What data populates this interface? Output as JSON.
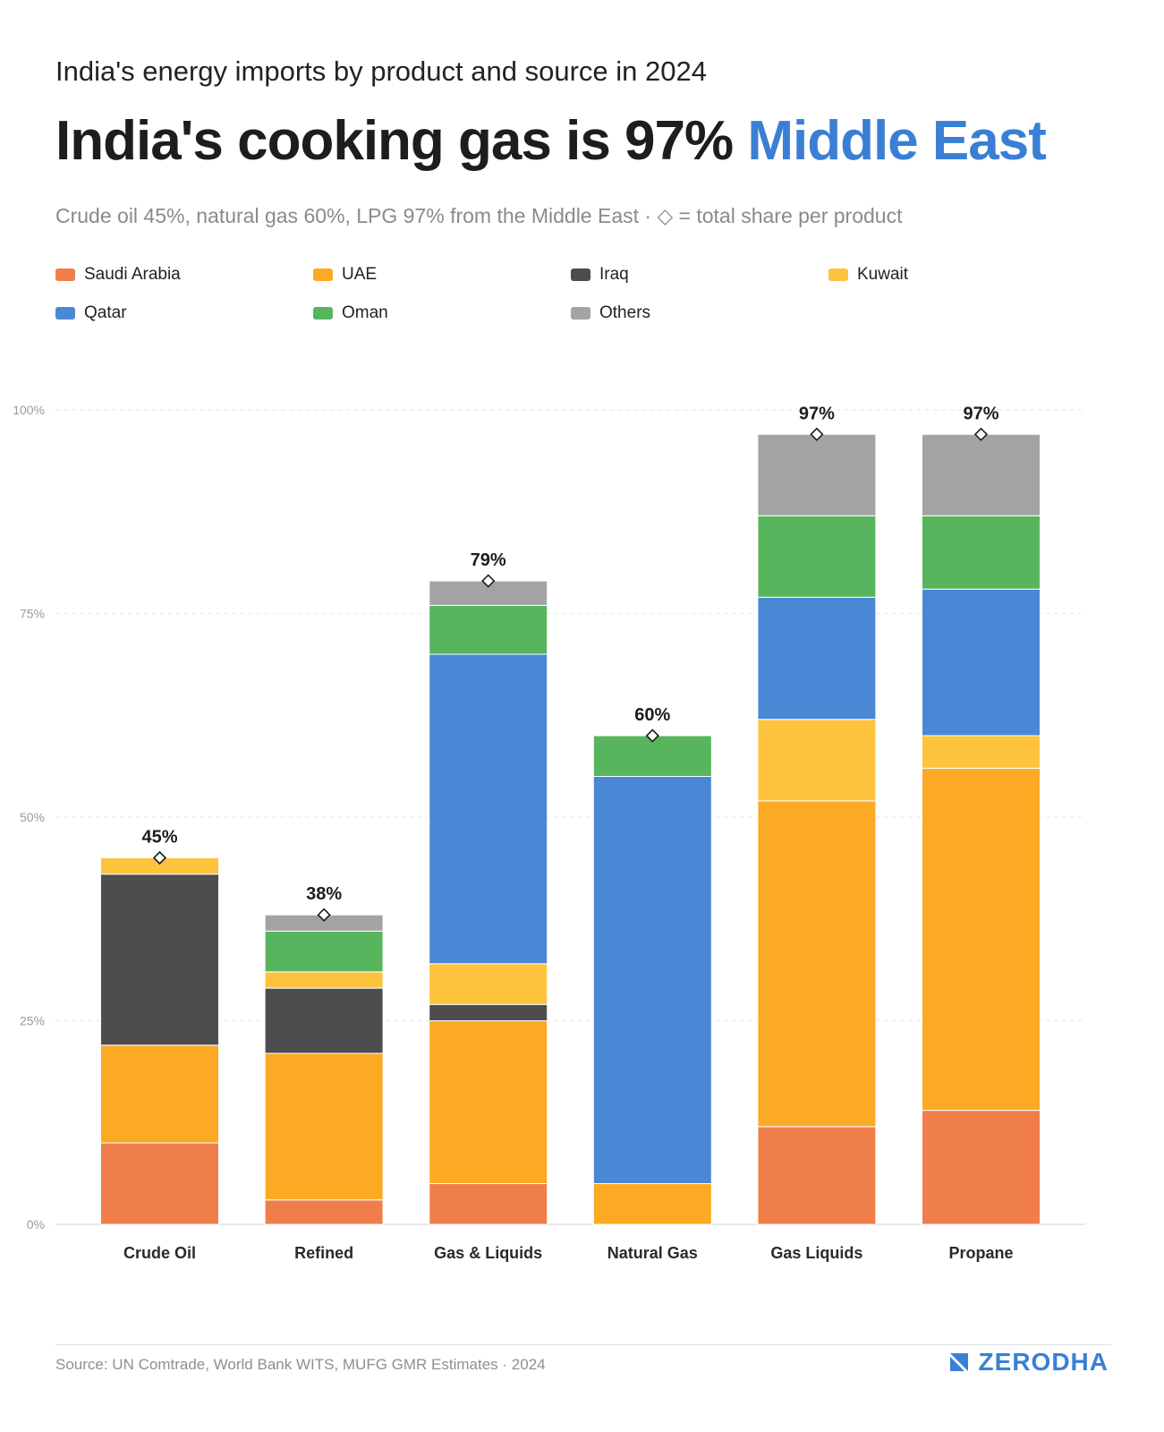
{
  "header": {
    "eyebrow": "India's energy imports by product and source in 2024",
    "headline_main": "India's cooking gas is 97% ",
    "headline_accent": "Middle East",
    "subtitle": "Crude oil 45%, natural gas 60%, LPG 97% from the Middle East · ◇ = total share per product"
  },
  "legend": [
    {
      "label": "Saudi Arabia",
      "color": "#f07e4a"
    },
    {
      "label": "UAE",
      "color": "#fca923"
    },
    {
      "label": "Iraq",
      "color": "#4d4d4d"
    },
    {
      "label": "Kuwait",
      "color": "#fec33d"
    },
    {
      "label": "Qatar",
      "color": "#4a88d6"
    },
    {
      "label": "Oman",
      "color": "#57b55d"
    },
    {
      "label": "Others",
      "color": "#a3a3a3"
    }
  ],
  "chart_data": {
    "type": "bar",
    "stacked": true,
    "categories": [
      "Crude Oil",
      "Refined",
      "Gas & Liquids",
      "Natural Gas",
      "Gas Liquids",
      "Propane"
    ],
    "series": [
      {
        "name": "Saudi Arabia",
        "color": "#f07e4a",
        "values": [
          10,
          3,
          5,
          0,
          12,
          14
        ]
      },
      {
        "name": "UAE",
        "color": "#fca923",
        "values": [
          12,
          18,
          20,
          5,
          40,
          42
        ]
      },
      {
        "name": "Iraq",
        "color": "#4d4d4d",
        "values": [
          21,
          8,
          2,
          0,
          0,
          0
        ]
      },
      {
        "name": "Kuwait",
        "color": "#fec33d",
        "values": [
          2,
          2,
          5,
          0,
          10,
          4
        ]
      },
      {
        "name": "Qatar",
        "color": "#4a88d6",
        "values": [
          0,
          0,
          38,
          50,
          15,
          18
        ]
      },
      {
        "name": "Oman",
        "color": "#57b55d",
        "values": [
          0,
          5,
          6,
          5,
          10,
          9
        ]
      },
      {
        "name": "Others",
        "color": "#a3a3a3",
        "values": [
          0,
          2,
          3,
          0,
          10,
          10
        ]
      }
    ],
    "totals": [
      45,
      38,
      79,
      60,
      97,
      97
    ],
    "total_labels": [
      "45%",
      "38%",
      "79%",
      "60%",
      "97%",
      "97%"
    ],
    "y_ticks": [
      0,
      25,
      50,
      75,
      100
    ],
    "y_tick_labels": [
      "0%",
      "25%",
      "50%",
      "75%",
      "100%"
    ],
    "ylim": [
      0,
      100
    ],
    "grid": true,
    "legend_position": "top"
  },
  "footer": {
    "source": "Source: UN Comtrade, World Bank WITS, MUFG GMR Estimates · 2024",
    "brand": "ZERODHA",
    "brand_color": "#3a7fd5"
  }
}
